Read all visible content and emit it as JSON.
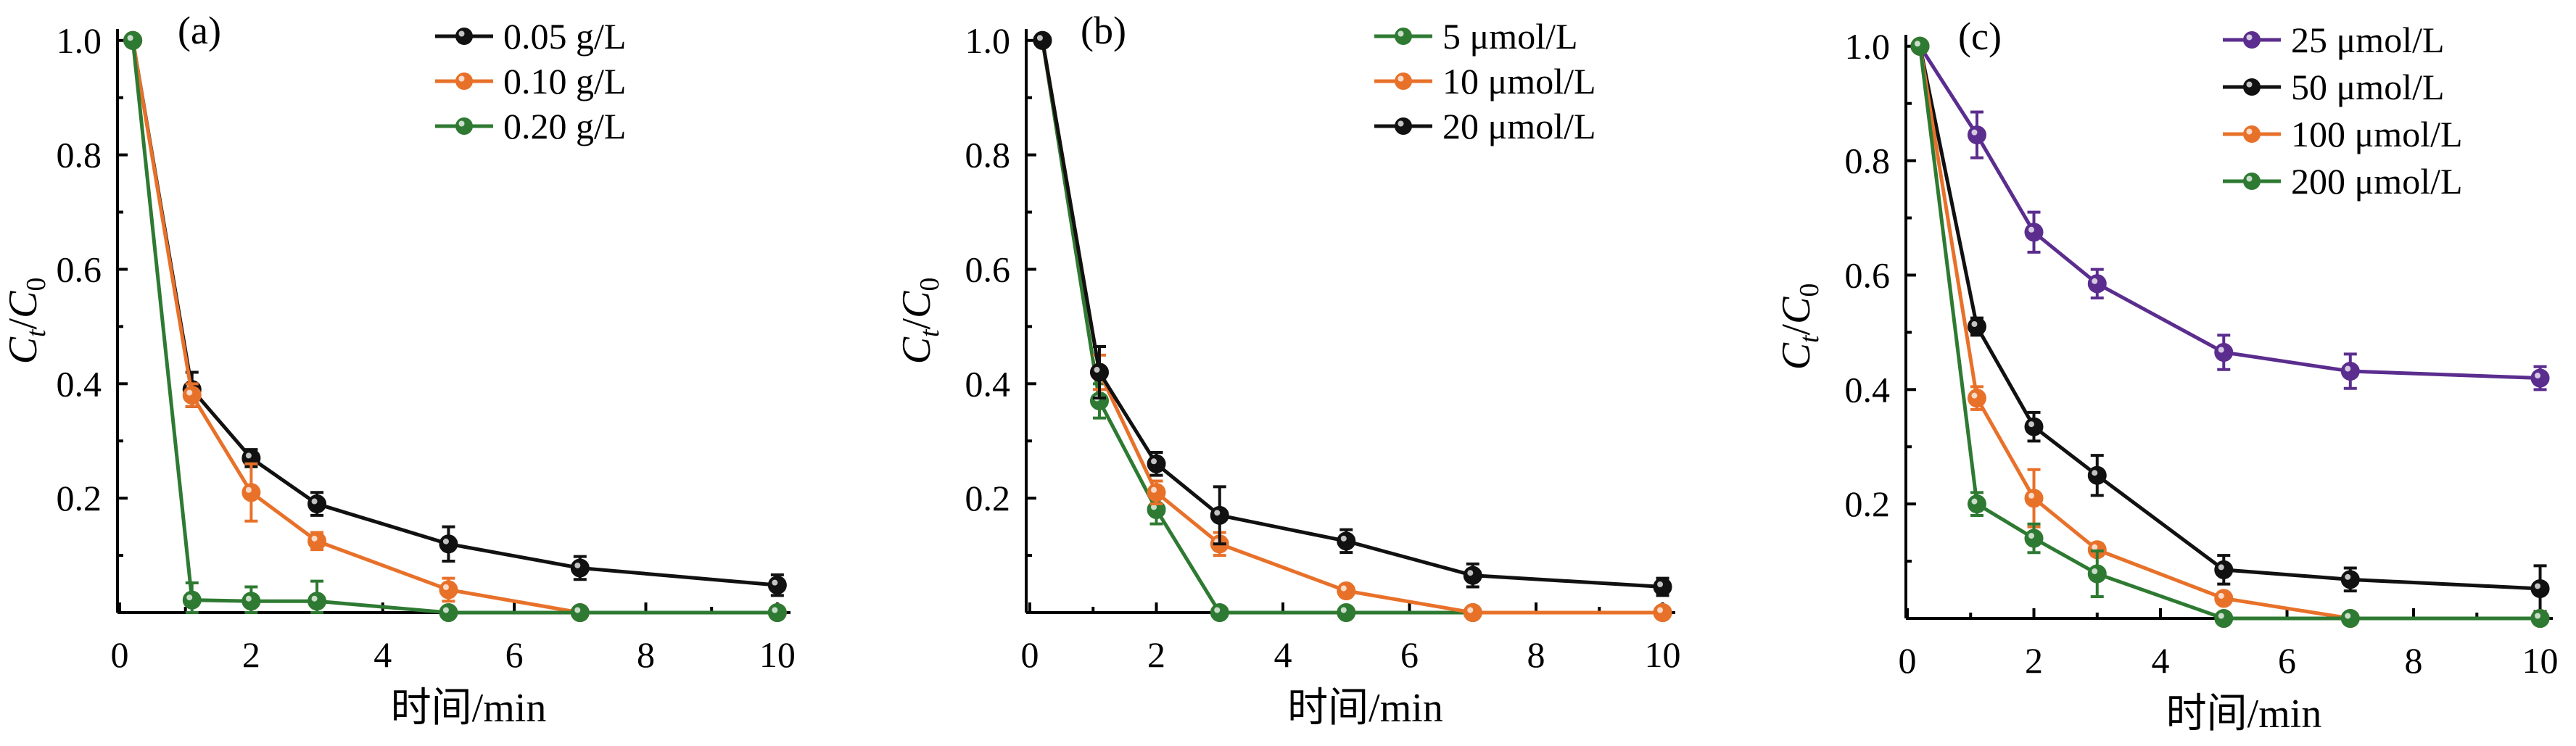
{
  "chart_data": [
    {
      "type": "line",
      "panel_label": "(a)",
      "xlabel": "时间/min",
      "ylabel_main": "C",
      "ylabel_sub1": "t",
      "ylabel_slash": "/",
      "ylabel_main2": "C",
      "ylabel_sub2": "0",
      "xlim": [
        0,
        10.2
      ],
      "ylim": [
        0,
        1.02
      ],
      "xticks": [
        0,
        2,
        4,
        6,
        8,
        10
      ],
      "xtick_labels": [
        "0",
        "2",
        "4",
        "6",
        "8",
        "10"
      ],
      "yticks": [
        0.2,
        0.4,
        0.6,
        0.8,
        1.0
      ],
      "ytick_labels": [
        "0.2",
        "0.4",
        "0.6",
        "0.8",
        "1.0"
      ],
      "legend_position": "top-right",
      "series": [
        {
          "name": "0.05 g/L",
          "color": "#111111",
          "points": [
            [
              0.2,
              1.0,
              0
            ],
            [
              1.1,
              0.39,
              0.03
            ],
            [
              2,
              0.27,
              0.015
            ],
            [
              3,
              0.19,
              0.02
            ],
            [
              5,
              0.12,
              0.03
            ],
            [
              7,
              0.078,
              0.02
            ],
            [
              10,
              0.048,
              0.018
            ]
          ]
        },
        {
          "name": "0.10 g/L",
          "color": "#e8712a",
          "points": [
            [
              0.2,
              1.0,
              0
            ],
            [
              1.1,
              0.38,
              0.02
            ],
            [
              2,
              0.21,
              0.05
            ],
            [
              3,
              0.125,
              0.015
            ],
            [
              5,
              0.04,
              0.02
            ],
            [
              7,
              0.0,
              0
            ],
            [
              10,
              0.0,
              0
            ]
          ]
        },
        {
          "name": "0.20 g/L",
          "color": "#2e7a32",
          "points": [
            [
              0.2,
              1.0,
              0
            ],
            [
              1.1,
              0.022,
              0.03
            ],
            [
              2,
              0.02,
              0.025
            ],
            [
              3,
              0.02,
              0.035
            ],
            [
              5,
              0.0,
              0
            ],
            [
              7,
              0.0,
              0
            ],
            [
              10,
              0.0,
              0
            ]
          ]
        }
      ]
    },
    {
      "type": "line",
      "panel_label": "(b)",
      "xlabel": "时间/min",
      "ylabel_main": "C",
      "ylabel_sub1": "t",
      "ylabel_slash": "/",
      "ylabel_main2": "C",
      "ylabel_sub2": "0",
      "xlim": [
        0,
        10.2
      ],
      "ylim": [
        0,
        1.02
      ],
      "xticks": [
        0,
        2,
        4,
        6,
        8,
        10
      ],
      "xtick_labels": [
        "0",
        "2",
        "4",
        "6",
        "8",
        "10"
      ],
      "yticks": [
        0.2,
        0.4,
        0.6,
        0.8,
        1.0
      ],
      "ytick_labels": [
        "0.2",
        "0.4",
        "0.6",
        "0.8",
        "1.0"
      ],
      "legend_position": "top-right",
      "series": [
        {
          "name": "5 μmol/L",
          "color": "#2e7a32",
          "points": [
            [
              0.2,
              1.0,
              0
            ],
            [
              1.1,
              0.37,
              0.03
            ],
            [
              2,
              0.18,
              0.025
            ],
            [
              3,
              0.0,
              0
            ],
            [
              5,
              0.0,
              0
            ],
            [
              7,
              0.0,
              0
            ],
            [
              10,
              0.0,
              0
            ]
          ]
        },
        {
          "name": "10 μmol/L",
          "color": "#e8712a",
          "points": [
            [
              0.2,
              1.0,
              0
            ],
            [
              1.1,
              0.42,
              0.03
            ],
            [
              2,
              0.21,
              0.02
            ],
            [
              3,
              0.12,
              0.02
            ],
            [
              5,
              0.038,
              0.01
            ],
            [
              7,
              0.0,
              0
            ],
            [
              10,
              0.0,
              0
            ]
          ]
        },
        {
          "name": "20 μmol/L",
          "color": "#111111",
          "points": [
            [
              0.2,
              1.0,
              0
            ],
            [
              1.1,
              0.42,
              0.045
            ],
            [
              2,
              0.26,
              0.02
            ],
            [
              3,
              0.17,
              0.05
            ],
            [
              5,
              0.125,
              0.02
            ],
            [
              7,
              0.065,
              0.02
            ],
            [
              10,
              0.045,
              0.015
            ]
          ]
        }
      ]
    },
    {
      "type": "line",
      "panel_label": "(c)",
      "xlabel": "时间/min",
      "ylabel_main": "C",
      "ylabel_sub1": "t",
      "ylabel_slash": "/",
      "ylabel_main2": "C",
      "ylabel_sub2": "0",
      "xlim": [
        0,
        10.2
      ],
      "ylim": [
        0,
        1.02
      ],
      "xticks": [
        0,
        2,
        4,
        6,
        8,
        10
      ],
      "xtick_labels": [
        "0",
        "2",
        "4",
        "6",
        "8",
        "10"
      ],
      "yticks": [
        0.2,
        0.4,
        0.6,
        0.8,
        1.0
      ],
      "ytick_labels": [
        "0.2",
        "0.4",
        "0.6",
        "0.8",
        "1.0"
      ],
      "legend_position": "top-right",
      "series": [
        {
          "name": "25 μmol/L",
          "color": "#5b2d8e",
          "points": [
            [
              0.2,
              1.0,
              0
            ],
            [
              1.1,
              0.845,
              0.04
            ],
            [
              2,
              0.675,
              0.035
            ],
            [
              3,
              0.585,
              0.025
            ],
            [
              5,
              0.465,
              0.03
            ],
            [
              7,
              0.432,
              0.03
            ],
            [
              10,
              0.42,
              0.02
            ]
          ]
        },
        {
          "name": "50 μmol/L",
          "color": "#111111",
          "points": [
            [
              0.2,
              1.0,
              0
            ],
            [
              1.1,
              0.51,
              0.015
            ],
            [
              2,
              0.335,
              0.025
            ],
            [
              3,
              0.25,
              0.035
            ],
            [
              5,
              0.085,
              0.025
            ],
            [
              7,
              0.068,
              0.02
            ],
            [
              10,
              0.052,
              0.04
            ]
          ]
        },
        {
          "name": "100 μmol/L",
          "color": "#e8712a",
          "points": [
            [
              0.2,
              1.0,
              0
            ],
            [
              1.1,
              0.385,
              0.02
            ],
            [
              2,
              0.21,
              0.05
            ],
            [
              3,
              0.12,
              0.01
            ],
            [
              5,
              0.035,
              0.01
            ],
            [
              7,
              0.0,
              0
            ],
            [
              10,
              0.0,
              0
            ]
          ]
        },
        {
          "name": "200 μmol/L",
          "color": "#2e7a32",
          "points": [
            [
              0.2,
              1.0,
              0
            ],
            [
              1.1,
              0.2,
              0.02
            ],
            [
              2,
              0.14,
              0.025
            ],
            [
              3,
              0.078,
              0.04
            ],
            [
              5,
              0.0,
              0
            ],
            [
              7,
              0.0,
              0
            ],
            [
              10,
              0.0,
              0
            ]
          ]
        }
      ]
    }
  ]
}
